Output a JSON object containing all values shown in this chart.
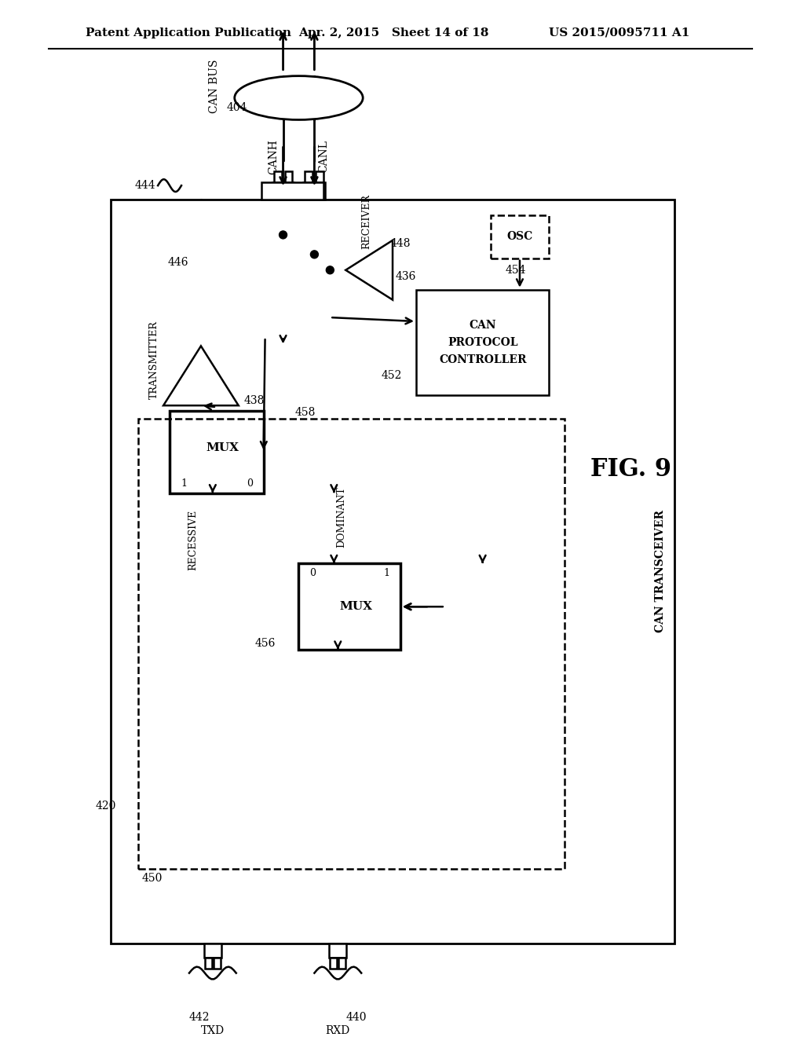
{
  "header_left": "Patent Application Publication",
  "header_mid": "Apr. 2, 2015   Sheet 14 of 18",
  "header_right": "US 2015/0095711 A1",
  "fig_label": "FIG. 9",
  "bg_color": "#ffffff",
  "line_color": "#000000"
}
